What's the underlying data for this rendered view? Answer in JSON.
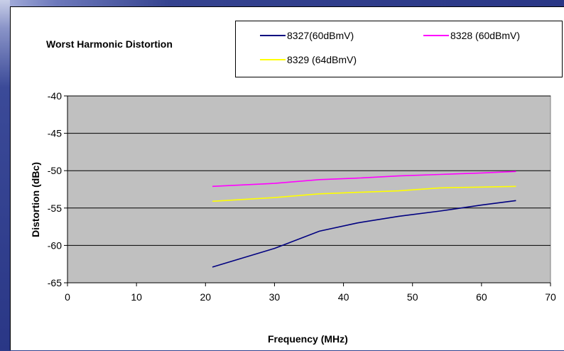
{
  "chart_data": {
    "type": "line",
    "title": "Worst Harmonic Distortion",
    "xlabel": "Frequency (MHz)",
    "ylabel": "Distortion (dBc)",
    "xlim": [
      0,
      70
    ],
    "ylim": [
      -65,
      -40
    ],
    "x_ticks": [
      "0",
      "10",
      "20",
      "30",
      "40",
      "50",
      "60",
      "70"
    ],
    "y_ticks": [
      "-40",
      "-45",
      "-50",
      "-55",
      "-60",
      "-65"
    ],
    "grid": "horizontal",
    "legend_placement": "top",
    "plot_background": "#c0c0c0",
    "series": [
      {
        "name": "8327(60dBmV)",
        "color": "#000080",
        "x": [
          21,
          30,
          36.5,
          42,
          48,
          54,
          60,
          65
        ],
        "y": [
          -62.9,
          -60.4,
          -58.1,
          -57,
          -56.1,
          -55.4,
          -54.6,
          -54
        ]
      },
      {
        "name": "8328 (60dBmV)",
        "color": "#ff00ff",
        "x": [
          21,
          30,
          36.5,
          42,
          48,
          54,
          60,
          65
        ],
        "y": [
          -52.1,
          -51.7,
          -51.2,
          -51,
          -50.7,
          -50.5,
          -50.3,
          -50.1
        ]
      },
      {
        "name": "8329 (64dBmV)",
        "color": "#ffff00",
        "x": [
          21,
          30,
          36.5,
          42,
          48,
          54,
          60,
          65
        ],
        "y": [
          -54.1,
          -53.6,
          -53.1,
          -52.9,
          -52.7,
          -52.3,
          -52.2,
          -52.1
        ]
      }
    ]
  }
}
